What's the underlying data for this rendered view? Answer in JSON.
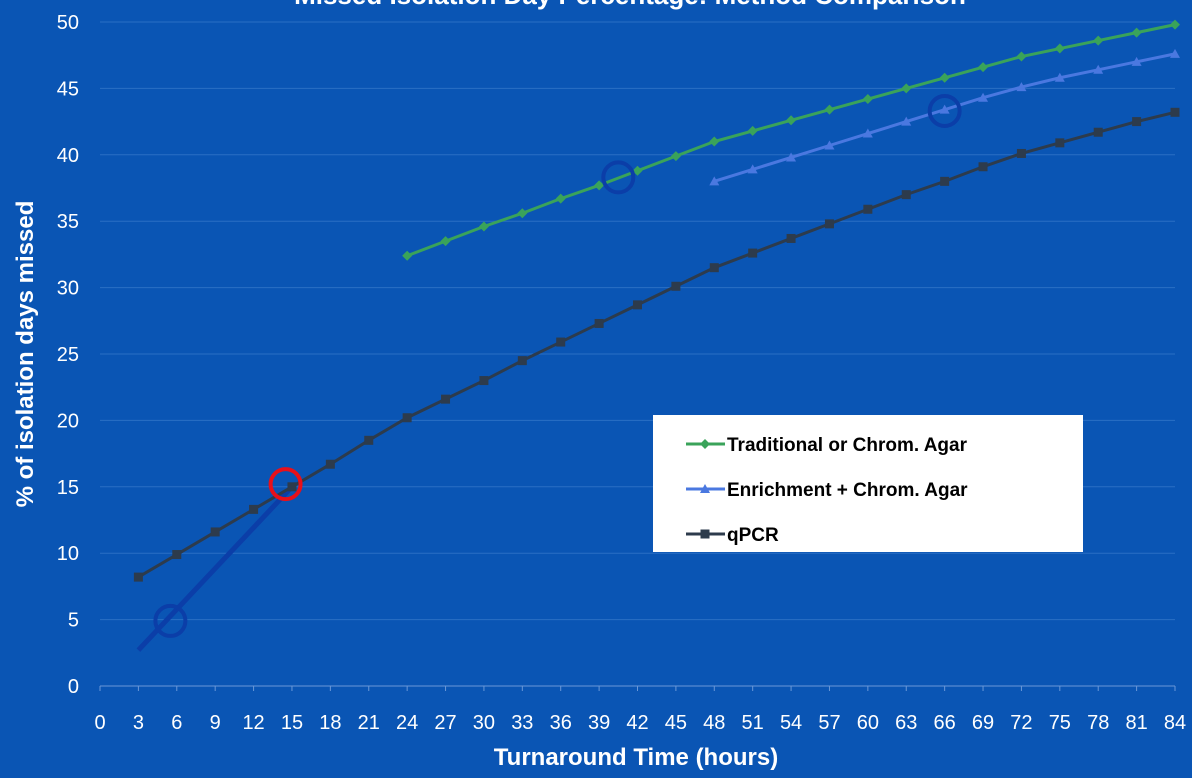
{
  "chart_data": {
    "type": "line",
    "title": "Missed Isolation Day Percentage: Method Comparison",
    "xlabel": "Turnaround Time (hours)",
    "ylabel": "% of isolation days missed",
    "xlim": [
      0,
      84
    ],
    "ylim": [
      0,
      50
    ],
    "x_ticks": [
      "0",
      "3",
      "6",
      "9",
      "12",
      "15",
      "18",
      "21",
      "24",
      "27",
      "30",
      "33",
      "36",
      "39",
      "42",
      "45",
      "48",
      "51",
      "54",
      "57",
      "60",
      "63",
      "66",
      "69",
      "72",
      "75",
      "78",
      "81",
      "84"
    ],
    "y_ticks": [
      "0",
      "5",
      "10",
      "15",
      "20",
      "25",
      "30",
      "35",
      "40",
      "45",
      "50"
    ],
    "grid": "horizontal",
    "legend_position": "right-middle",
    "background": "#0a55b4",
    "series": [
      {
        "name": "Traditional or Chrom. Agar",
        "color": "#3aa35a",
        "marker": "diamond",
        "x": [
          24,
          27,
          30,
          33,
          36,
          39,
          42,
          45,
          48,
          51,
          54,
          57,
          60,
          63,
          66,
          69,
          72,
          75,
          78,
          81,
          84
        ],
        "y": [
          32.4,
          33.5,
          34.6,
          35.6,
          36.7,
          37.7,
          38.8,
          39.9,
          41.0,
          41.8,
          42.6,
          43.4,
          44.2,
          45.0,
          45.8,
          46.6,
          47.4,
          48.0,
          48.6,
          49.2,
          49.8
        ]
      },
      {
        "name": "Enrichment + Chrom. Agar",
        "color": "#4a78e0",
        "marker": "triangle",
        "x": [
          48,
          51,
          54,
          57,
          60,
          63,
          66,
          69,
          72,
          75,
          78,
          81,
          84
        ],
        "y": [
          38.0,
          38.9,
          39.8,
          40.7,
          41.6,
          42.5,
          43.4,
          44.3,
          45.1,
          45.8,
          46.4,
          47.0,
          47.6
        ]
      },
      {
        "name": "qPCR",
        "color": "#2d3b4c",
        "marker": "square",
        "x": [
          3,
          6,
          9,
          12,
          15,
          18,
          21,
          24,
          27,
          30,
          33,
          36,
          39,
          42,
          45,
          48,
          51,
          54,
          57,
          60,
          63,
          66,
          69,
          72,
          75,
          78,
          81,
          84
        ],
        "y": [
          8.2,
          9.9,
          11.6,
          13.3,
          15.0,
          16.7,
          18.5,
          20.2,
          21.6,
          23.0,
          24.5,
          25.9,
          27.3,
          28.7,
          30.1,
          31.5,
          32.6,
          33.7,
          34.8,
          35.9,
          37.0,
          38.0,
          39.1,
          40.1,
          40.9,
          41.7,
          42.5,
          43.2
        ]
      }
    ],
    "annotations": [
      {
        "kind": "line",
        "color": "#0b3ea8",
        "x1": 3,
        "y1": 2.7,
        "x2": 15,
        "y2": 15.0
      },
      {
        "kind": "circle",
        "color": "#0b3ea8",
        "x": 5.5,
        "y": 4.9
      },
      {
        "kind": "circle",
        "color": "#e8101a",
        "x": 14.5,
        "y": 15.2
      },
      {
        "kind": "circle",
        "color": "#0b3ea8",
        "x": 40.5,
        "y": 38.3
      },
      {
        "kind": "circle",
        "color": "#0b3ea8",
        "x": 66,
        "y": 43.3
      }
    ]
  }
}
